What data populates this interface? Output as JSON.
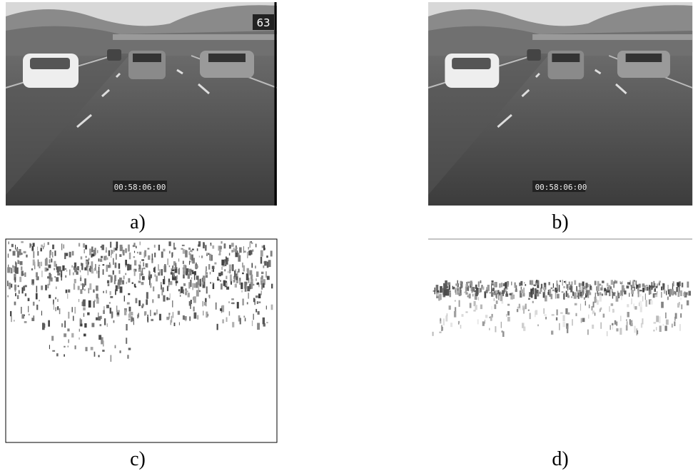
{
  "panels": [
    {
      "caption": "a)",
      "timestamp": "00:58:06:00",
      "sign": "63"
    },
    {
      "caption": "b)",
      "timestamp": "00:58:06:00"
    },
    {
      "caption": "c)"
    },
    {
      "caption": "d)"
    }
  ]
}
